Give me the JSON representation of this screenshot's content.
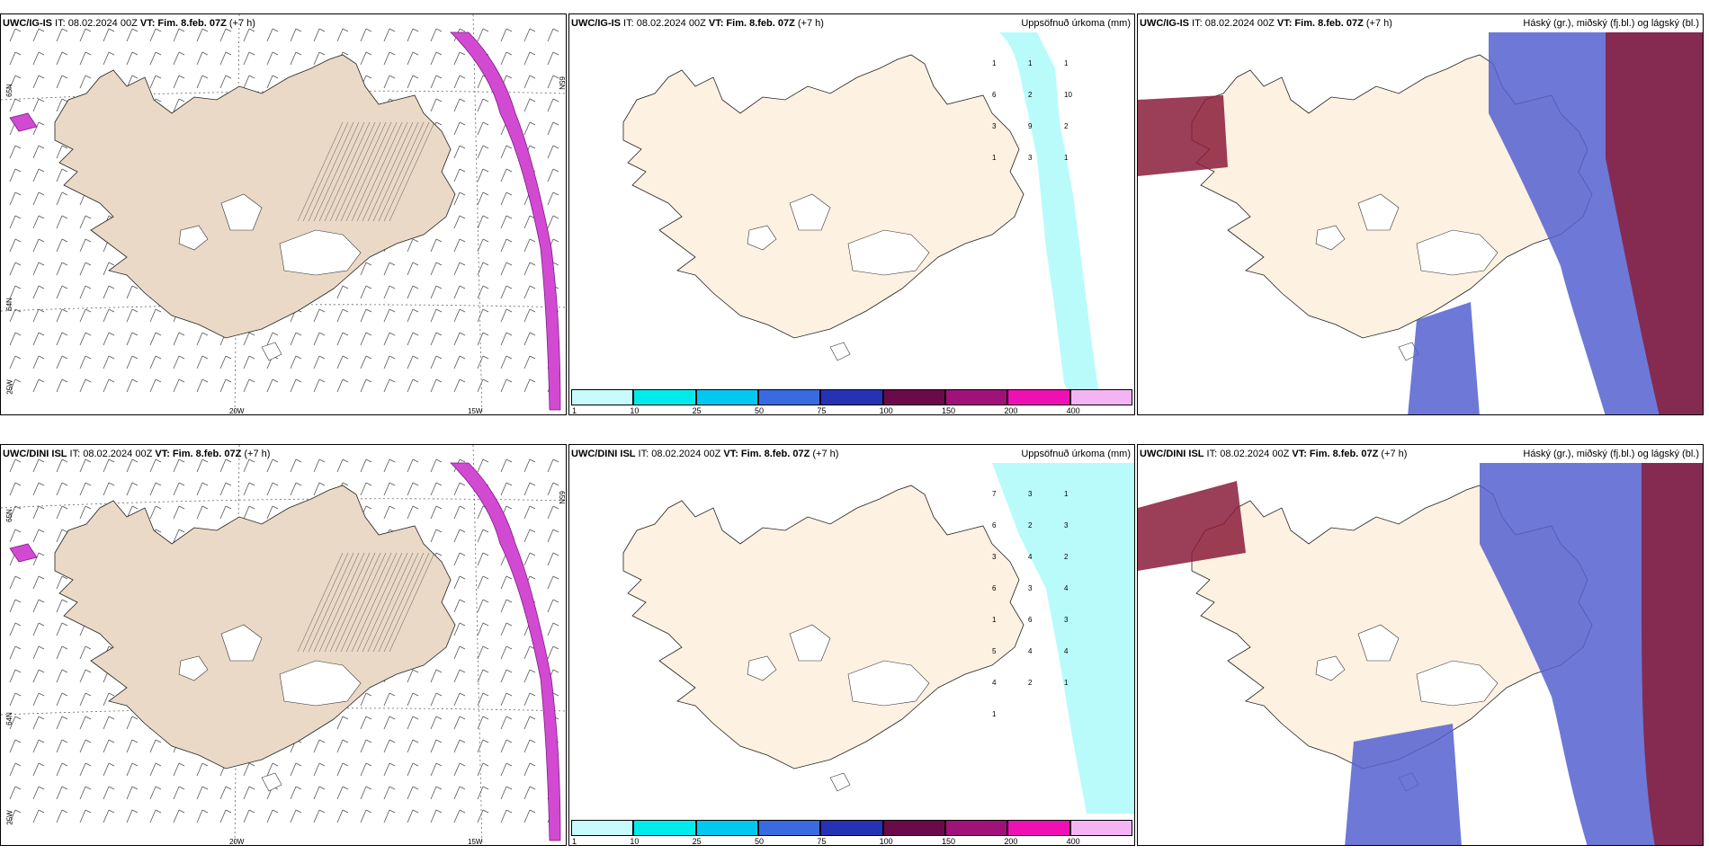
{
  "colors": {
    "land": "#ead9c6",
    "land_light": "#fdf1e2",
    "glacier": "#ffffff",
    "magenta": "#d24ad2",
    "purple": "#7c1d88",
    "cyan": "#b9fbfb",
    "blue": "#5560d0",
    "maroon": "#8a1c3a"
  },
  "rows": [
    {
      "wind": {
        "title_bold1": "UWC/IG-IS",
        "title_mid": " IT: 08.02.2024 00Z ",
        "title_bold2": "VT: Fim. 8.feb. 07Z",
        "title_end": " (+7 h)",
        "labels": [
          "65N",
          "64N",
          "25W",
          "20W",
          "15W",
          "65N"
        ]
      },
      "precip": {
        "title_bold1": "UWC/IG-IS",
        "title_mid": " IT: 08.02.2024 00Z ",
        "title_bold2": "VT: Fim. 8.feb. 07Z",
        "title_end": " (+7 h)",
        "right_title": "Uppsöfnuð úrkoma (mm)",
        "numbers": [
          "1",
          "1",
          "1",
          "6",
          "2",
          "10",
          "3",
          "9",
          "2",
          "1",
          "3",
          "1"
        ]
      },
      "cloud": {
        "title_bold1": "UWC/IG-IS",
        "title_mid": " IT: 08.02.2024 00Z ",
        "title_bold2": "VT: Fim. 8.feb. 07Z",
        "title_end": " (+7 h)",
        "right_title": "Háský (gr.), miðský (fj.bl.) og lágský (bl.)"
      }
    },
    {
      "wind": {
        "title_bold1": "UWC/DINI ISL",
        "title_mid": " IT: 08.02.2024 00Z ",
        "title_bold2": "VT: Fim. 8.feb. 07Z",
        "title_end": " (+7 h)",
        "labels": [
          "65N",
          "64N",
          "25W",
          "20W",
          "15W",
          "65N"
        ]
      },
      "precip": {
        "title_bold1": "UWC/DINI ISL",
        "title_mid": " IT: 08.02.2024 00Z ",
        "title_bold2": "VT: Fim. 8.feb. 07Z",
        "title_end": " (+7 h)",
        "right_title": "Uppsöfnuð úrkoma (mm)",
        "numbers": [
          "7",
          "3",
          "1",
          "6",
          "2",
          "3",
          "3",
          "4",
          "2",
          "6",
          "3",
          "4",
          "1",
          "6",
          "3",
          "5",
          "4",
          "4",
          "4",
          "2",
          "1",
          "1"
        ]
      },
      "cloud": {
        "title_bold1": "UWC/DINI ISL",
        "title_mid": " IT: 08.02.2024 00Z ",
        "title_bold2": "VT: Fim. 8.feb. 07Z",
        "title_end": " (+7 h)",
        "right_title": "Háský (gr.), miðský (fj.bl.) og lágský (bl.)"
      }
    }
  ],
  "colorbar": {
    "ticks": [
      "1",
      "10",
      "25",
      "50",
      "75",
      "100",
      "150",
      "200",
      "400"
    ],
    "colors": [
      "#c8fbfb",
      "#00ecec",
      "#00c8f0",
      "#3a6ae0",
      "#2632b4",
      "#6a0a4a",
      "#a0127a",
      "#ee10b4",
      "#f4b4f4"
    ]
  }
}
